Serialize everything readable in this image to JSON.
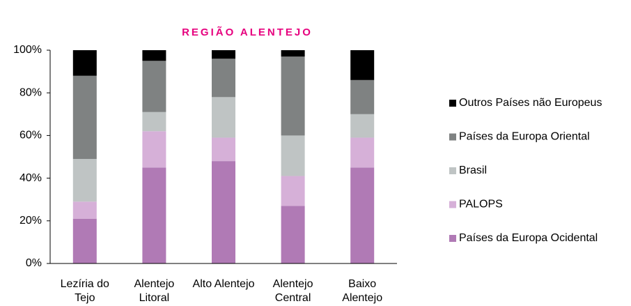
{
  "chart_data": {
    "type": "stacked_bar",
    "title": "REGIÃO ALENTEJO",
    "categories": [
      "Lezíria do Tejo",
      "Alentejo Litoral",
      "Alto Alentejo",
      "Alentejo Central",
      "Baixo Alentejo"
    ],
    "series": [
      {
        "name": "Países da Europa Ocidental",
        "color": "#b07ab5",
        "values": [
          21,
          45,
          48,
          27,
          45
        ]
      },
      {
        "name": "PALOPS",
        "color": "#d6b0d8",
        "values": [
          8,
          17,
          11,
          14,
          14
        ]
      },
      {
        "name": "Brasil",
        "color": "#bfc4c4",
        "values": [
          20,
          9,
          19,
          19,
          11
        ]
      },
      {
        "name": "Países da Europa Oriental",
        "color": "#7f8282",
        "values": [
          39,
          24,
          18,
          37,
          16
        ]
      },
      {
        "name": "Outros Países não Europeus",
        "color": "#000000",
        "values": [
          12,
          5,
          4,
          3,
          14
        ]
      }
    ],
    "ylim": [
      0,
      100
    ],
    "yticks": [
      {
        "value": 0,
        "label": "0%"
      },
      {
        "value": 20,
        "label": "20%"
      },
      {
        "value": 40,
        "label": "40%"
      },
      {
        "value": 60,
        "label": "60%"
      },
      {
        "value": 80,
        "label": "80%"
      },
      {
        "value": 100,
        "label": "100%"
      }
    ],
    "legend": "right"
  }
}
